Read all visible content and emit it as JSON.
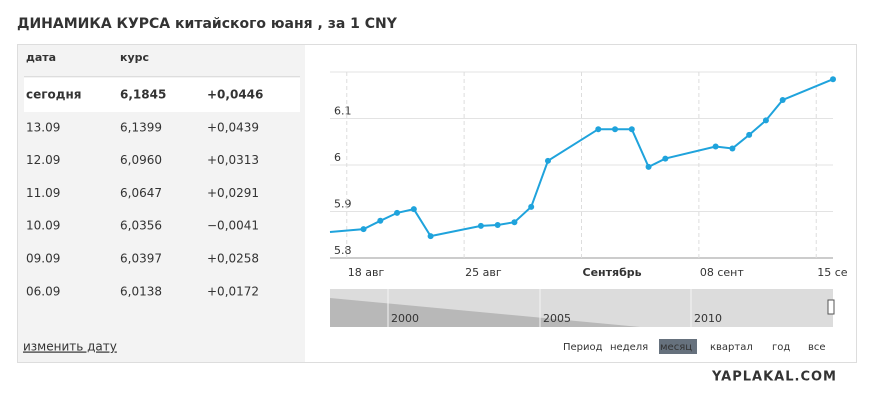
{
  "title": "ДИНАМИКА КУРСА китайского юаня , за 1 CNY",
  "table": {
    "headers": [
      "дата",
      "курс"
    ],
    "rows": [
      [
        "сегодня",
        "6,1845",
        "+0,0446"
      ],
      [
        "13.09",
        "6,1399",
        "+0,0439"
      ],
      [
        "12.09",
        "6,0960",
        "+0,0313"
      ],
      [
        "11.09",
        "6,0647",
        "+0,0291"
      ],
      [
        "10.09",
        "6,0356",
        "−0,0041"
      ],
      [
        "09.09",
        "6,0397",
        "+0,0258"
      ],
      [
        "06.09",
        "6,0138",
        "+0,0172"
      ]
    ]
  },
  "link": "изменить дату",
  "chart_data": {
    "type": "line",
    "x": [
      "08-17",
      "08-19",
      "08-20",
      "08-21",
      "08-22",
      "08-23",
      "08-26",
      "08-27",
      "08-28",
      "08-29",
      "08-30",
      "09-02",
      "09-03",
      "09-04",
      "09-05",
      "09-06",
      "09-09",
      "09-10",
      "09-11",
      "09-12",
      "09-13",
      "09-16"
    ],
    "series": [
      {
        "color": "#1fa3dc",
        "values": [
          5.856,
          5.862,
          5.88,
          5.897,
          5.905,
          5.847,
          5.869,
          5.871,
          5.877,
          5.91,
          6.009,
          6.077,
          6.077,
          6.077,
          5.996,
          6.0138,
          6.0397,
          6.0356,
          6.0647,
          6.096,
          6.1399,
          6.1845
        ]
      }
    ],
    "xlim": [
      "08-17",
      "09-16"
    ],
    "xticks": [
      {
        "value": "08-18",
        "label": "18 авг"
      },
      {
        "value": "08-25",
        "label": "25 авг"
      },
      {
        "value": "09-01",
        "label": "Сентябрь",
        "bold": true
      },
      {
        "value": "09-08",
        "label": "08 сент"
      },
      {
        "value": "09-15",
        "label": "15 се"
      }
    ],
    "ylim": [
      5.8,
      6.2
    ],
    "yticks": [
      5.8,
      5.9,
      6.0,
      6.1
    ],
    "grid": true
  },
  "navigator": {
    "labels": [
      "2000",
      "2005",
      "2010"
    ]
  },
  "period": {
    "label": "Период",
    "options": [
      "неделя",
      "месяц",
      "квартал",
      "год",
      "все"
    ],
    "active": 1
  },
  "watermark": "YAPLAKAL.COM"
}
